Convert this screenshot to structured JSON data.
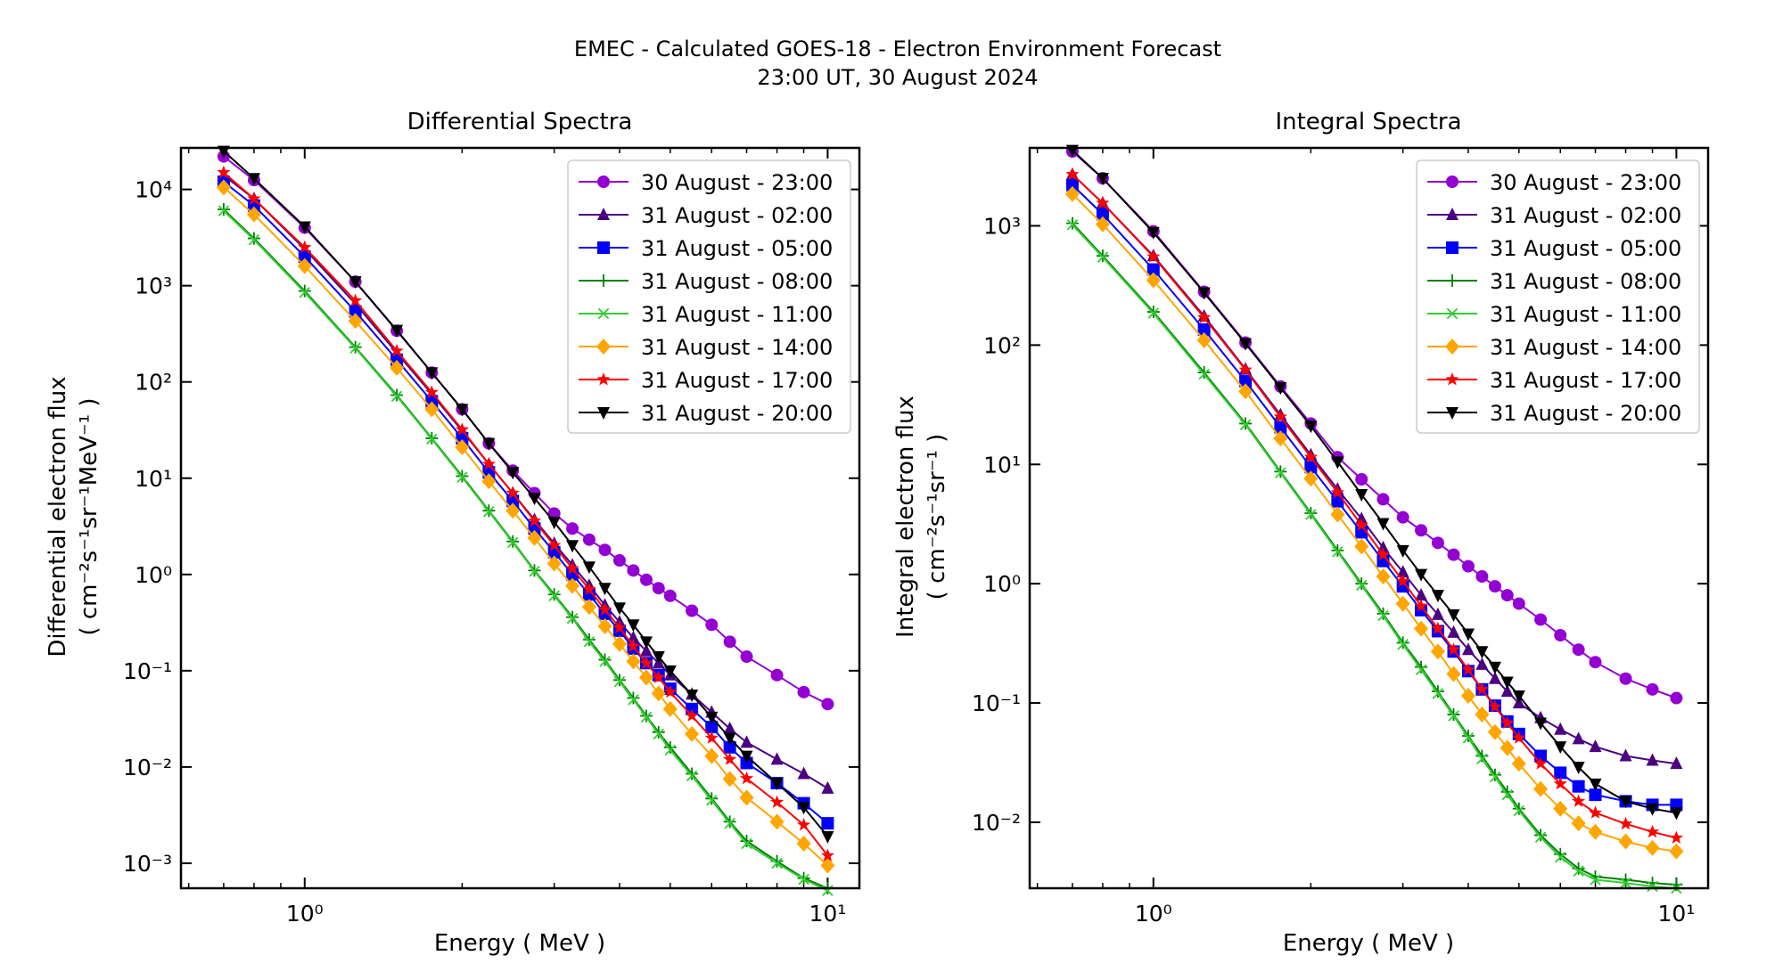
{
  "figure": {
    "title_line1": "EMEC - Calculated GOES-18 - Electron Environment Forecast",
    "title_line2": "23:00 UT, 30 August 2024"
  },
  "series_styles": [
    {
      "name": "30 August - 23:00",
      "color": "#9400d3",
      "marker": "circle"
    },
    {
      "name": "31 August - 02:00",
      "color": "#4b0082",
      "marker": "triangle-up"
    },
    {
      "name": "31 August - 05:00",
      "color": "#0000ff",
      "marker": "square"
    },
    {
      "name": "31 August - 08:00",
      "color": "#008000",
      "marker": "plus"
    },
    {
      "name": "31 August - 11:00",
      "color": "#32cd32",
      "marker": "x"
    },
    {
      "name": "31 August - 14:00",
      "color": "#ffa500",
      "marker": "diamond"
    },
    {
      "name": "31 August - 17:00",
      "color": "#ff0000",
      "marker": "star"
    },
    {
      "name": "31 August - 20:00",
      "color": "#000000",
      "marker": "triangle-down"
    }
  ],
  "chart_data": [
    {
      "type": "line",
      "title": "Differential Spectra",
      "xlabel": "Energy ( MeV )",
      "ylabel_line1": "Differential electron flux",
      "ylabel_line2": "( cm⁻²s⁻¹sr⁻¹MeV⁻¹ )",
      "xscale": "log",
      "yscale": "log",
      "xlim": [
        0.58,
        11.5
      ],
      "ylim": [
        0.00055,
        27000
      ],
      "x_tick_labels": [
        "10⁰",
        "10¹"
      ],
      "y_tick_labels": [
        "10⁻³",
        "10⁻²",
        "10⁻¹",
        "10⁰",
        "10¹",
        "10²",
        "10³",
        "10⁴"
      ],
      "legend": "upper right",
      "grid": false,
      "x": [
        0.7,
        0.8,
        1.0,
        1.25,
        1.5,
        1.75,
        2.0,
        2.25,
        2.5,
        2.75,
        3.0,
        3.25,
        3.5,
        3.75,
        4.0,
        4.25,
        4.5,
        4.75,
        5.0,
        5.5,
        6.0,
        6.5,
        7.0,
        8.0,
        9.0,
        10.0
      ],
      "series": [
        {
          "name": "30 August - 23:00",
          "values": [
            22000,
            12500,
            4000,
            1100,
            340,
            125,
            52,
            23,
            12,
            7,
            4.3,
            3,
            2.3,
            1.8,
            1.4,
            1.1,
            0.88,
            0.72,
            0.6,
            0.42,
            0.3,
            0.2,
            0.14,
            0.09,
            0.06,
            0.045
          ]
        },
        {
          "name": "31 August - 02:00",
          "values": [
            14000,
            8000,
            2400,
            650,
            200,
            75,
            31,
            14,
            7,
            3.7,
            2.1,
            1.25,
            0.77,
            0.48,
            0.32,
            0.22,
            0.16,
            0.12,
            0.09,
            0.057,
            0.037,
            0.025,
            0.018,
            0.012,
            0.0085,
            0.006
          ]
        },
        {
          "name": "31 August - 05:00",
          "values": [
            12000,
            6800,
            2000,
            540,
            170,
            63,
            26,
            11.5,
            5.8,
            3,
            1.7,
            1.0,
            0.62,
            0.39,
            0.26,
            0.17,
            0.12,
            0.09,
            0.065,
            0.04,
            0.026,
            0.016,
            0.011,
            0.0068,
            0.0042,
            0.0026
          ]
        },
        {
          "name": "31 August - 08:00",
          "values": [
            6200,
            3100,
            880,
            230,
            73,
            26,
            10.5,
            4.6,
            2.2,
            1.1,
            0.62,
            0.36,
            0.21,
            0.13,
            0.08,
            0.052,
            0.034,
            0.023,
            0.016,
            0.0085,
            0.0047,
            0.0027,
            0.0017,
            0.00105,
            0.0007,
            0.00055
          ]
        },
        {
          "name": "31 August - 11:00",
          "values": [
            6000,
            3000,
            850,
            225,
            71,
            25.5,
            10.2,
            4.5,
            2.15,
            1.08,
            0.6,
            0.35,
            0.2,
            0.125,
            0.077,
            0.05,
            0.033,
            0.022,
            0.015,
            0.0081,
            0.0045,
            0.0026,
            0.0016,
            0.001,
            0.00068,
            0.00052
          ]
        },
        {
          "name": "31 August - 14:00",
          "values": [
            10500,
            5500,
            1600,
            430,
            140,
            52,
            21,
            9.3,
            4.6,
            2.4,
            1.3,
            0.76,
            0.46,
            0.29,
            0.19,
            0.125,
            0.085,
            0.058,
            0.04,
            0.022,
            0.013,
            0.0075,
            0.0048,
            0.0027,
            0.0016,
            0.00095
          ]
        },
        {
          "name": "31 August - 17:00",
          "values": [
            15000,
            8000,
            2500,
            700,
            210,
            78,
            32,
            14,
            7,
            3.6,
            2,
            1.15,
            0.7,
            0.43,
            0.28,
            0.18,
            0.12,
            0.085,
            0.06,
            0.034,
            0.02,
            0.012,
            0.0076,
            0.0043,
            0.0025,
            0.0012
          ]
        },
        {
          "name": "31 August - 20:00",
          "values": [
            25000,
            13000,
            4100,
            1100,
            345,
            125,
            52,
            23,
            11.5,
            6.2,
            3.5,
            2.0,
            1.2,
            0.72,
            0.45,
            0.3,
            0.2,
            0.14,
            0.1,
            0.056,
            0.033,
            0.02,
            0.013,
            0.0068,
            0.0038,
            0.0019
          ]
        }
      ]
    },
    {
      "type": "line",
      "title": "Integral Spectra",
      "xlabel": "Energy ( MeV )",
      "ylabel_line1": "Integral electron flux",
      "ylabel_line2": "( cm⁻²s⁻¹sr⁻¹ )",
      "xscale": "log",
      "yscale": "log",
      "xlim": [
        0.58,
        11.5
      ],
      "ylim": [
        0.0028,
        4500
      ],
      "x_tick_labels": [
        "10⁰",
        "10¹"
      ],
      "y_tick_labels": [
        "10⁻²",
        "10⁻¹",
        "10⁰",
        "10¹",
        "10²",
        "10³"
      ],
      "legend": "upper right",
      "grid": false,
      "x": [
        0.7,
        0.8,
        1.0,
        1.25,
        1.5,
        1.75,
        2.0,
        2.25,
        2.5,
        2.75,
        3.0,
        3.25,
        3.5,
        3.75,
        4.0,
        4.25,
        4.5,
        4.75,
        5.0,
        5.5,
        6.0,
        6.5,
        7.0,
        8.0,
        9.0,
        10.0
      ],
      "series": [
        {
          "name": "30 August - 23:00",
          "values": [
            4200,
            2500,
            900,
            280,
            105,
            45,
            22,
            11.5,
            7.5,
            5.1,
            3.6,
            2.8,
            2.2,
            1.75,
            1.4,
            1.15,
            0.95,
            0.8,
            0.68,
            0.5,
            0.37,
            0.28,
            0.22,
            0.16,
            0.13,
            0.11
          ]
        },
        {
          "name": "31 August - 02:00",
          "values": [
            2700,
            1550,
            560,
            175,
            63,
            26,
            12,
            6.2,
            3.5,
            2.0,
            1.25,
            0.8,
            0.55,
            0.39,
            0.28,
            0.21,
            0.16,
            0.125,
            0.1,
            0.075,
            0.06,
            0.05,
            0.043,
            0.036,
            0.033,
            0.031
          ]
        },
        {
          "name": "31 August - 05:00",
          "values": [
            2200,
            1250,
            430,
            135,
            50,
            20.5,
            9.5,
            4.9,
            2.7,
            1.55,
            0.95,
            0.6,
            0.4,
            0.27,
            0.185,
            0.13,
            0.095,
            0.07,
            0.055,
            0.036,
            0.026,
            0.02,
            0.017,
            0.015,
            0.014,
            0.014
          ]
        },
        {
          "name": "31 August - 08:00",
          "values": [
            1050,
            560,
            190,
            59,
            22,
            8.7,
            3.9,
            1.9,
            1.0,
            0.56,
            0.32,
            0.2,
            0.125,
            0.08,
            0.053,
            0.036,
            0.025,
            0.018,
            0.013,
            0.0078,
            0.0054,
            0.0041,
            0.0035,
            0.0033,
            0.0031,
            0.003
          ]
        },
        {
          "name": "31 August - 11:00",
          "values": [
            1020,
            545,
            185,
            57,
            21.5,
            8.5,
            3.8,
            1.85,
            0.97,
            0.54,
            0.31,
            0.19,
            0.12,
            0.078,
            0.051,
            0.034,
            0.024,
            0.017,
            0.0125,
            0.0075,
            0.0051,
            0.0039,
            0.0033,
            0.0031,
            0.0029,
            0.0028
          ]
        },
        {
          "name": "31 August - 14:00",
          "values": [
            1850,
            1030,
            350,
            110,
            41,
            16.5,
            7.6,
            3.8,
            2.05,
            1.15,
            0.68,
            0.42,
            0.27,
            0.175,
            0.115,
            0.08,
            0.057,
            0.042,
            0.031,
            0.019,
            0.013,
            0.0098,
            0.0083,
            0.0069,
            0.0061,
            0.0057
          ]
        },
        {
          "name": "31 August - 17:00",
          "values": [
            2700,
            1550,
            550,
            170,
            62,
            25,
            11.5,
            5.8,
            3.1,
            1.75,
            1.05,
            0.65,
            0.42,
            0.28,
            0.19,
            0.13,
            0.093,
            0.068,
            0.051,
            0.031,
            0.021,
            0.015,
            0.012,
            0.0097,
            0.0083,
            0.0074
          ]
        },
        {
          "name": "31 August - 20:00",
          "values": [
            4300,
            2500,
            880,
            275,
            103,
            44,
            21,
            10.5,
            5.6,
            3.2,
            1.9,
            1.2,
            0.8,
            0.55,
            0.38,
            0.27,
            0.2,
            0.15,
            0.115,
            0.068,
            0.043,
            0.029,
            0.021,
            0.015,
            0.013,
            0.012
          ]
        }
      ]
    }
  ]
}
